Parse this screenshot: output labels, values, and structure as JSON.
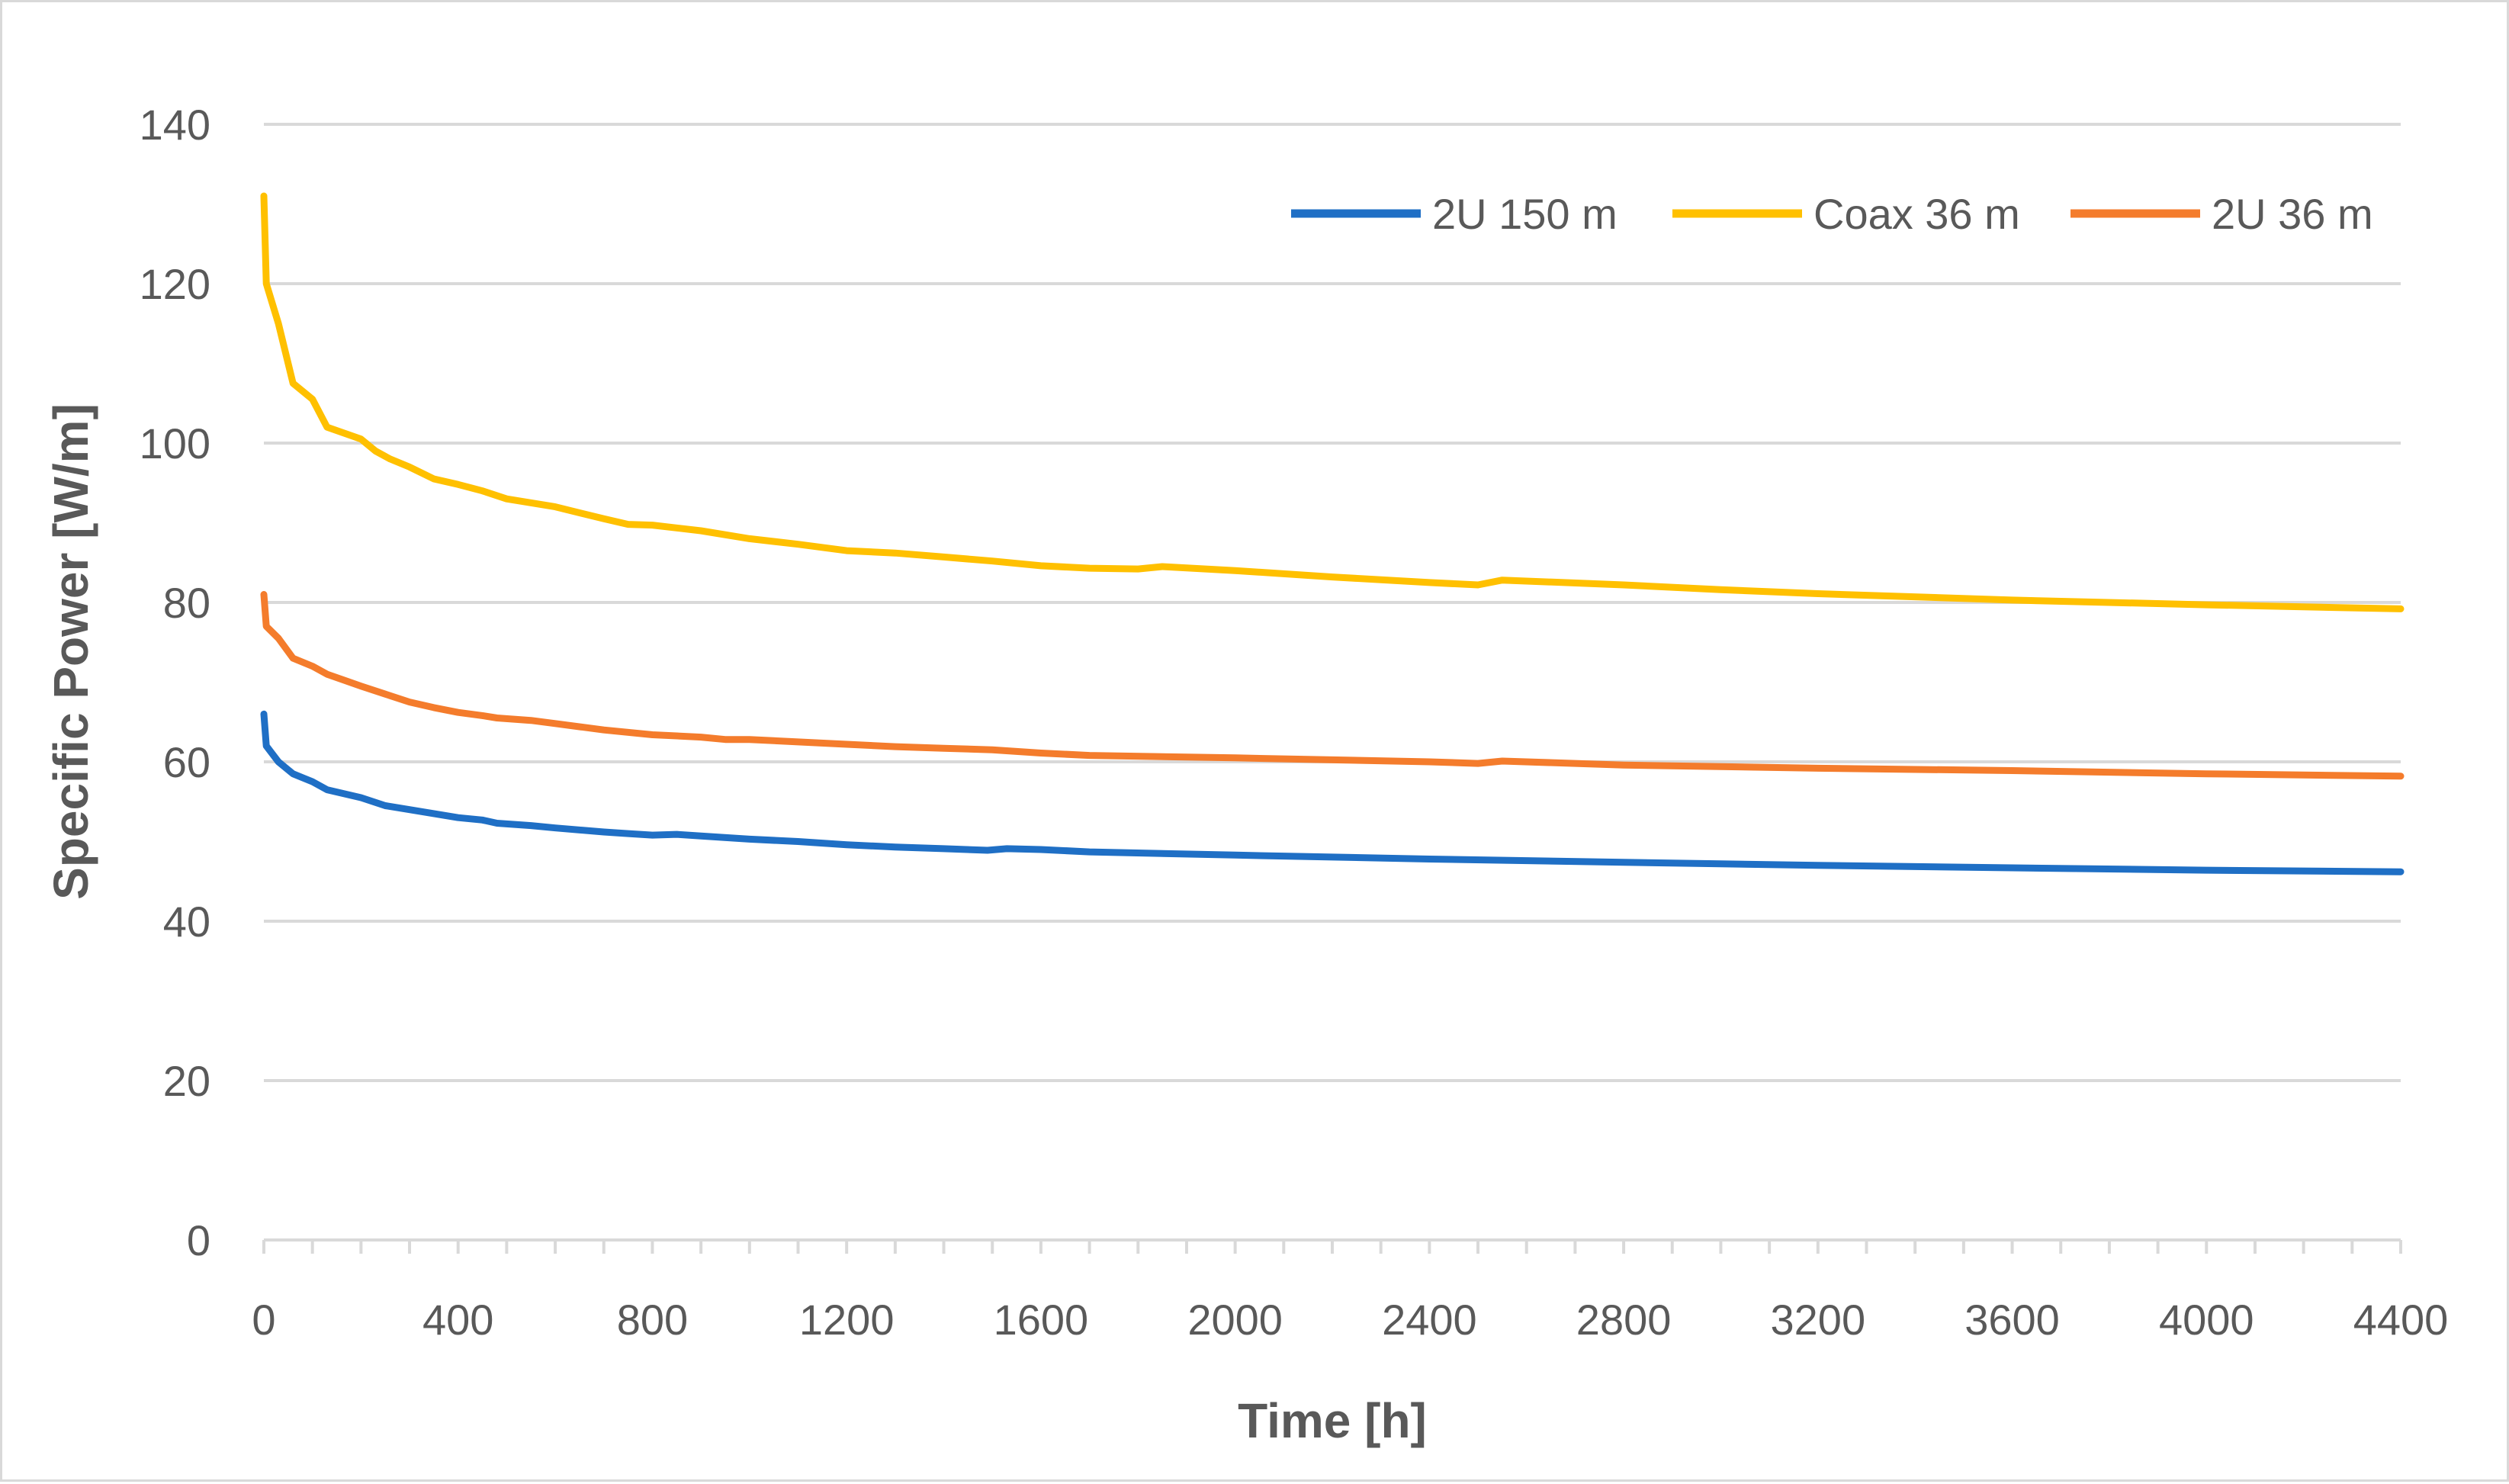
{
  "chart_data": {
    "type": "line",
    "title": "",
    "xlabel": "Time [h]",
    "ylabel": "Specific Power [W/m]",
    "xlim": [
      0,
      4400
    ],
    "ylim": [
      0,
      140
    ],
    "x_ticks": [
      "0",
      "400",
      "800",
      "1200",
      "1600",
      "2000",
      "2400",
      "2800",
      "3200",
      "3600",
      "4000",
      "4400"
    ],
    "y_ticks": [
      "0",
      "20",
      "40",
      "60",
      "80",
      "100",
      "120",
      "140"
    ],
    "grid": true,
    "legend_position": "top-right",
    "series": [
      {
        "name": "2U 150 m",
        "color": "#1f6fc5",
        "points": [
          [
            0,
            66
          ],
          [
            5,
            62
          ],
          [
            30,
            60
          ],
          [
            60,
            58.5
          ],
          [
            100,
            57.5
          ],
          [
            130,
            56.5
          ],
          [
            200,
            55.5
          ],
          [
            250,
            54.5
          ],
          [
            300,
            54
          ],
          [
            350,
            53.5
          ],
          [
            400,
            53
          ],
          [
            450,
            52.7
          ],
          [
            480,
            52.3
          ],
          [
            550,
            52
          ],
          [
            600,
            51.7
          ],
          [
            700,
            51.2
          ],
          [
            750,
            51
          ],
          [
            800,
            50.8
          ],
          [
            850,
            50.9
          ],
          [
            900,
            50.7
          ],
          [
            1000,
            50.3
          ],
          [
            1100,
            50
          ],
          [
            1200,
            49.6
          ],
          [
            1300,
            49.3
          ],
          [
            1400,
            49.1
          ],
          [
            1490,
            48.9
          ],
          [
            1530,
            49.1
          ],
          [
            1600,
            49
          ],
          [
            1700,
            48.7
          ],
          [
            2000,
            48.3
          ],
          [
            2400,
            47.8
          ],
          [
            2800,
            47.4
          ],
          [
            3000,
            47.2
          ],
          [
            3200,
            47
          ],
          [
            3600,
            46.7
          ],
          [
            4000,
            46.4
          ],
          [
            4400,
            46.2
          ]
        ]
      },
      {
        "name": "Coax 36 m",
        "color": "#ffc000",
        "points": [
          [
            0,
            131
          ],
          [
            5,
            120
          ],
          [
            30,
            115
          ],
          [
            60,
            107.5
          ],
          [
            100,
            105.5
          ],
          [
            130,
            102
          ],
          [
            200,
            100.5
          ],
          [
            230,
            99
          ],
          [
            260,
            98
          ],
          [
            300,
            97
          ],
          [
            350,
            95.5
          ],
          [
            400,
            94.8
          ],
          [
            450,
            94
          ],
          [
            500,
            93
          ],
          [
            600,
            92
          ],
          [
            700,
            90.5
          ],
          [
            750,
            89.8
          ],
          [
            800,
            89.7
          ],
          [
            900,
            89
          ],
          [
            1000,
            88
          ],
          [
            1100,
            87.3
          ],
          [
            1200,
            86.5
          ],
          [
            1300,
            86.2
          ],
          [
            1400,
            85.7
          ],
          [
            1500,
            85.2
          ],
          [
            1600,
            84.6
          ],
          [
            1700,
            84.3
          ],
          [
            1800,
            84.2
          ],
          [
            1850,
            84.5
          ],
          [
            2000,
            84
          ],
          [
            2200,
            83.2
          ],
          [
            2400,
            82.5
          ],
          [
            2500,
            82.2
          ],
          [
            2550,
            82.8
          ],
          [
            2800,
            82.2
          ],
          [
            3000,
            81.6
          ],
          [
            3200,
            81.1
          ],
          [
            3600,
            80.3
          ],
          [
            4000,
            79.7
          ],
          [
            4400,
            79.2
          ]
        ]
      },
      {
        "name": "2U 36 m",
        "color": "#f47c2c",
        "points": [
          [
            0,
            81
          ],
          [
            5,
            77
          ],
          [
            30,
            75.5
          ],
          [
            60,
            73
          ],
          [
            100,
            72
          ],
          [
            130,
            71
          ],
          [
            200,
            69.5
          ],
          [
            250,
            68.5
          ],
          [
            300,
            67.5
          ],
          [
            350,
            66.8
          ],
          [
            400,
            66.2
          ],
          [
            450,
            65.8
          ],
          [
            480,
            65.5
          ],
          [
            550,
            65.2
          ],
          [
            600,
            64.8
          ],
          [
            700,
            64
          ],
          [
            800,
            63.4
          ],
          [
            900,
            63.1
          ],
          [
            950,
            62.8
          ],
          [
            1000,
            62.8
          ],
          [
            1100,
            62.5
          ],
          [
            1200,
            62.2
          ],
          [
            1300,
            61.9
          ],
          [
            1400,
            61.7
          ],
          [
            1500,
            61.5
          ],
          [
            1600,
            61.1
          ],
          [
            1700,
            60.8
          ],
          [
            2000,
            60.5
          ],
          [
            2400,
            60
          ],
          [
            2500,
            59.8
          ],
          [
            2550,
            60.1
          ],
          [
            2800,
            59.6
          ],
          [
            3200,
            59.2
          ],
          [
            3600,
            58.9
          ],
          [
            4000,
            58.5
          ],
          [
            4400,
            58.2
          ]
        ]
      }
    ]
  }
}
